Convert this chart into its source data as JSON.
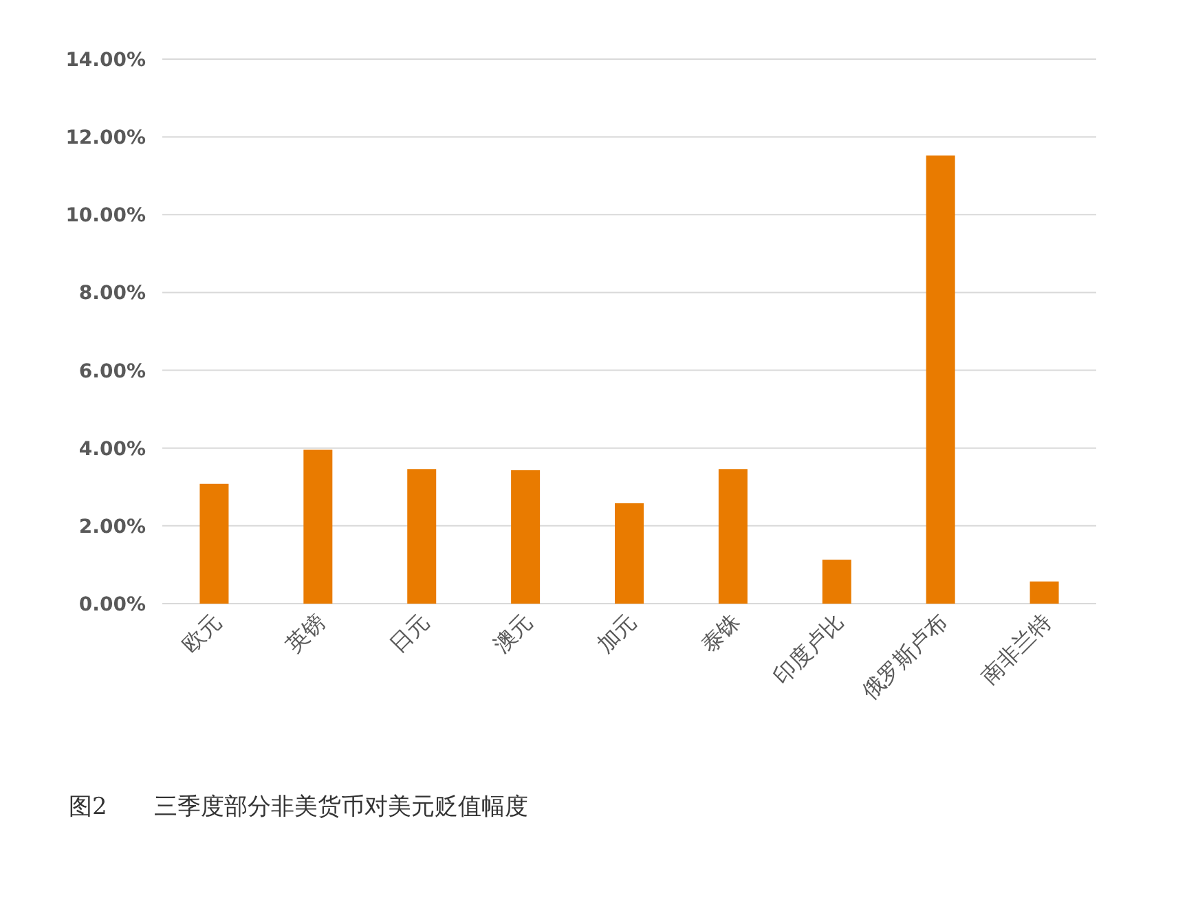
{
  "chart_data": {
    "type": "bar",
    "title": "图2　　三季度部分非美货币对美元贬值幅度",
    "categories": [
      "欧元",
      "英镑",
      "日元",
      "澳元",
      "加元",
      "泰铢",
      "印度卢比",
      "俄罗斯卢布",
      "南非兰特"
    ],
    "values": [
      3.08,
      3.96,
      3.46,
      3.43,
      2.58,
      3.46,
      1.13,
      11.52,
      0.57
    ],
    "color": "#e97b00",
    "ylim": [
      0,
      14
    ],
    "yticks": [
      {
        "value": 0,
        "label": "0.00%"
      },
      {
        "value": 2,
        "label": "2.00%"
      },
      {
        "value": 4,
        "label": "4.00%"
      },
      {
        "value": 6,
        "label": "6.00%"
      },
      {
        "value": 8,
        "label": "8.00%"
      },
      {
        "value": 10,
        "label": "10.00%"
      },
      {
        "value": 12,
        "label": "12.00%"
      },
      {
        "value": 14,
        "label": "14.00%"
      }
    ],
    "grid": "y"
  }
}
